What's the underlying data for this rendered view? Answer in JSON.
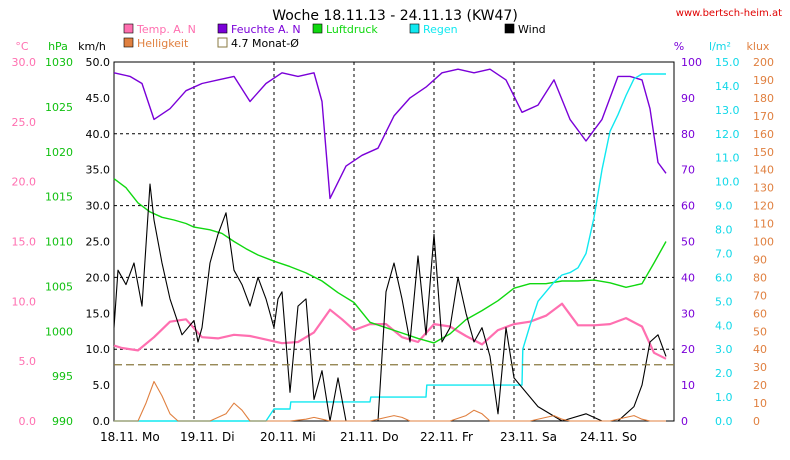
{
  "title": "Woche 18.11.13 - 24.11.13 (KW47)",
  "source_url": "www.bertsch-heim.at",
  "axes": {
    "temp": {
      "unit": "°C",
      "color": "#ff6fb0",
      "min": 0,
      "max": 30,
      "ticks": [
        "0.0",
        "5.0",
        "10.0",
        "15.0",
        "20.0",
        "25.0",
        "30.0"
      ]
    },
    "pressure": {
      "unit": "hPa",
      "color": "#10c010",
      "min": 990,
      "max": 1030,
      "ticks": [
        "990",
        "995",
        "1000",
        "1005",
        "1010",
        "1015",
        "1020",
        "1025",
        "1030"
      ]
    },
    "wind": {
      "unit": "km/h",
      "color": "#000000",
      "min": 0,
      "max": 50,
      "ticks": [
        "0.0",
        "5.0",
        "10.0",
        "15.0",
        "20.0",
        "25.0",
        "30.0",
        "35.0",
        "40.0",
        "45.0",
        "50.0"
      ]
    },
    "humidity": {
      "unit": "%",
      "color": "#7a00d8",
      "min": 0,
      "max": 100,
      "ticks": [
        "0",
        "10",
        "20",
        "30",
        "40",
        "50",
        "60",
        "70",
        "80",
        "90",
        "100"
      ]
    },
    "rain": {
      "unit": "l/m²",
      "color": "#10d8e8",
      "min": 0,
      "max": 15,
      "ticks": [
        "0.0",
        "1.0",
        "2.0",
        "3.0",
        "4.0",
        "5.0",
        "6.0",
        "7.0",
        "8.0",
        "9.0",
        "10.0",
        "11.0",
        "12.0",
        "13.0",
        "14.0",
        "15.0"
      ]
    },
    "brightness": {
      "unit": "klux",
      "color": "#e08040",
      "min": 0,
      "max": 200,
      "ticks": [
        "0",
        "10",
        "20",
        "30",
        "40",
        "50",
        "60",
        "70",
        "80",
        "90",
        "100",
        "110",
        "120",
        "130",
        "140",
        "150",
        "160",
        "170",
        "180",
        "190",
        "200"
      ]
    }
  },
  "legend": [
    {
      "label": "Temp. A. N",
      "color": "#ff6fb0",
      "style": "fill"
    },
    {
      "label": "Feuchte A. N",
      "color": "#7a00d8",
      "style": "fill"
    },
    {
      "label": "Luftdruck",
      "color": "#10d810",
      "style": "fill"
    },
    {
      "label": "Regen",
      "color": "#10e8f0",
      "style": "fill"
    },
    {
      "label": "Wind",
      "color": "#000000",
      "style": "fill"
    },
    {
      "label": "Helligkeit",
      "color": "#e08040",
      "style": "fill"
    },
    {
      "label": "4.7 Monat-Ø",
      "color": "#8a7a40",
      "style": "outline"
    }
  ],
  "chart_data": {
    "type": "line",
    "title": "Woche 18.11.13 - 24.11.13 (KW47)",
    "x_unit": "days since 18.11. 00:00",
    "xlim": [
      0,
      7
    ],
    "x_labels": [
      "18.11. Mo",
      "19.11. Di",
      "20.11. Mi",
      "21.11. Do",
      "22.11. Fr",
      "23.11. Sa",
      "24.11. So"
    ],
    "grid": true,
    "legend_position": "top",
    "reference_line": {
      "name": "4.7 Monat-Ø",
      "axis": "temp",
      "value": 4.7
    },
    "series": [
      {
        "name": "Temp. A. N",
        "axis": "temp",
        "x": [
          0,
          0.1,
          0.3,
          0.5,
          0.7,
          0.9,
          1.1,
          1.3,
          1.5,
          1.7,
          1.9,
          2.1,
          2.3,
          2.5,
          2.7,
          2.85,
          3.0,
          3.2,
          3.4,
          3.6,
          3.8,
          4.0,
          4.2,
          4.4,
          4.6,
          4.8,
          5.0,
          5.2,
          5.4,
          5.6,
          5.8,
          6.0,
          6.2,
          6.4,
          6.6,
          6.75,
          6.9
        ],
        "y": [
          6.3,
          6.1,
          5.9,
          7.0,
          8.3,
          8.5,
          7.0,
          6.9,
          7.2,
          7.1,
          6.8,
          6.5,
          6.6,
          7.4,
          9.3,
          8.5,
          7.6,
          8.1,
          8.1,
          7.0,
          6.6,
          8.1,
          7.9,
          7.1,
          6.4,
          7.6,
          8.1,
          8.3,
          8.8,
          9.8,
          8.0,
          8.0,
          8.1,
          8.6,
          7.9,
          5.7,
          5.2
        ]
      },
      {
        "name": "Feuchte A. N",
        "axis": "humidity",
        "x": [
          0,
          0.2,
          0.35,
          0.5,
          0.7,
          0.9,
          1.1,
          1.3,
          1.5,
          1.7,
          1.9,
          2.1,
          2.3,
          2.5,
          2.6,
          2.7,
          2.9,
          3.1,
          3.3,
          3.5,
          3.7,
          3.9,
          4.1,
          4.3,
          4.5,
          4.7,
          4.9,
          5.1,
          5.3,
          5.5,
          5.7,
          5.9,
          6.1,
          6.3,
          6.45,
          6.6,
          6.7,
          6.8,
          6.9
        ],
        "y": [
          97,
          96,
          94,
          84,
          87,
          92,
          94,
          95,
          96,
          89,
          94,
          97,
          96,
          97,
          89,
          62,
          71,
          74,
          76,
          85,
          90,
          93,
          97,
          98,
          97,
          98,
          95,
          86,
          88,
          95,
          84,
          78,
          84,
          96,
          96,
          95,
          87,
          72,
          69
        ]
      },
      {
        "name": "Luftdruck",
        "axis": "pressure",
        "x": [
          0,
          0.15,
          0.3,
          0.45,
          0.6,
          0.75,
          0.9,
          1.0,
          1.2,
          1.35,
          1.5,
          1.65,
          1.8,
          2.0,
          2.2,
          2.4,
          2.6,
          2.8,
          3.0,
          3.2,
          3.4,
          3.6,
          3.8,
          4.0,
          4.2,
          4.4,
          4.6,
          4.8,
          5.0,
          5.2,
          5.4,
          5.6,
          5.8,
          6.0,
          6.2,
          6.4,
          6.6,
          6.75,
          6.9
        ],
        "y": [
          1017,
          1016,
          1014.3,
          1013.3,
          1012.7,
          1012.4,
          1012.0,
          1011.6,
          1011.3,
          1010.9,
          1010.0,
          1009.2,
          1008.5,
          1007.8,
          1007.2,
          1006.5,
          1005.6,
          1004.3,
          1003.2,
          1001.0,
          1000.4,
          999.8,
          999.2,
          998.7,
          999.7,
          1001.3,
          1002.3,
          1003.4,
          1004.8,
          1005.3,
          1005.3,
          1005.6,
          1005.6,
          1005.7,
          1005.4,
          1004.9,
          1005.3,
          1007.6,
          1010.0
        ]
      },
      {
        "name": "Regen",
        "axis": "rain",
        "x": [
          0,
          1.9,
          2.0,
          2.2,
          2.21,
          3.2,
          3.21,
          3.9,
          3.91,
          5.1,
          5.11,
          5.2,
          5.3,
          5.5,
          5.6,
          5.7,
          5.8,
          5.9,
          6.0,
          6.1,
          6.2,
          6.3,
          6.4,
          6.5,
          6.6,
          6.7,
          6.9
        ],
        "y": [
          0,
          0,
          0.5,
          0.5,
          0.8,
          0.8,
          1.0,
          1.0,
          1.5,
          1.5,
          3.0,
          4.0,
          5.0,
          5.8,
          6.1,
          6.2,
          6.4,
          7.0,
          8.5,
          10.5,
          12.1,
          12.8,
          13.6,
          14.3,
          14.5,
          14.5,
          14.5
        ]
      },
      {
        "name": "Wind",
        "axis": "wind",
        "x": [
          0,
          0.05,
          0.15,
          0.25,
          0.35,
          0.45,
          0.5,
          0.6,
          0.7,
          0.85,
          1.0,
          1.05,
          1.1,
          1.2,
          1.3,
          1.4,
          1.5,
          1.6,
          1.7,
          1.8,
          1.9,
          2.0,
          2.05,
          2.1,
          2.2,
          2.3,
          2.4,
          2.5,
          2.6,
          2.7,
          2.8,
          2.9,
          3.0,
          3.1,
          3.2,
          3.3,
          3.4,
          3.5,
          3.6,
          3.7,
          3.8,
          3.9,
          4.0,
          4.1,
          4.2,
          4.3,
          4.4,
          4.5,
          4.6,
          4.7,
          4.8,
          4.9,
          5.0,
          5.3,
          5.6,
          5.9,
          6.1,
          6.2,
          6.3,
          6.4,
          6.5,
          6.6,
          6.7,
          6.8,
          6.9
        ],
        "y": [
          13,
          21,
          19,
          22,
          16,
          33,
          28,
          22,
          17,
          12,
          14,
          11,
          13,
          22,
          26,
          29,
          21,
          19,
          16,
          20,
          17,
          13,
          17,
          18,
          4,
          16,
          17,
          3,
          7,
          0,
          6,
          0,
          0,
          0,
          0,
          0,
          18,
          22,
          17,
          11,
          23,
          12,
          26,
          11,
          13,
          20,
          15,
          11,
          13,
          9,
          1,
          13,
          6,
          2,
          0,
          1,
          0,
          0,
          0,
          1,
          2,
          5,
          11,
          12,
          9
        ]
      },
      {
        "name": "Helligkeit",
        "axis": "brightness",
        "x": [
          0,
          0.3,
          0.4,
          0.5,
          0.6,
          0.7,
          0.8,
          1.2,
          1.4,
          1.5,
          1.6,
          1.7,
          2.2,
          2.4,
          2.5,
          2.6,
          2.7,
          3.2,
          3.4,
          3.5,
          3.6,
          3.7,
          4.2,
          4.4,
          4.5,
          4.6,
          4.7,
          5.2,
          5.4,
          5.5,
          5.6,
          5.7,
          6.2,
          6.4,
          6.5,
          6.6,
          6.7,
          6.9
        ],
        "y": [
          0,
          0,
          10,
          22,
          14,
          4,
          0,
          0,
          4,
          10,
          6,
          0,
          0,
          1,
          2,
          1,
          0,
          0,
          2,
          3,
          2,
          0,
          0,
          3,
          6,
          4,
          0,
          0,
          2,
          3,
          1,
          0,
          0,
          2,
          3,
          1,
          0,
          0
        ]
      }
    ]
  }
}
